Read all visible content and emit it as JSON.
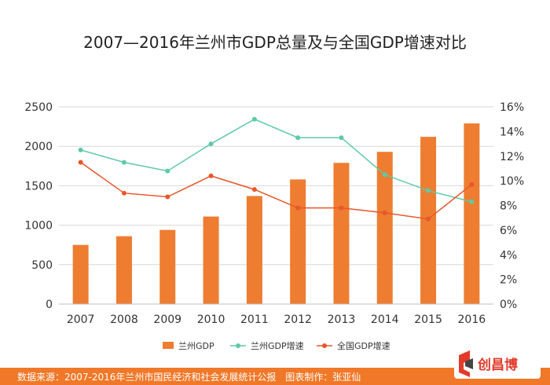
{
  "title": "2007—2016年兰州市GDP总量及与全国GDP增速对比",
  "footer": {
    "source": "数据来源：2007-2016年兰州市国民经济和社会发展统计公报",
    "author": "图表制作：张亚仙"
  },
  "logo_text": "创昌博",
  "colors": {
    "bar": "#ee7d31",
    "lanzhou_growth": "#5ec9a8",
    "national_growth": "#e8562a",
    "grid": "#d9d9d9",
    "axis_text": "#333333",
    "footer_bg": "#f07828"
  },
  "chart_data": {
    "type": "bar",
    "categories": [
      "2007",
      "2008",
      "2009",
      "2010",
      "2011",
      "2012",
      "2013",
      "2014",
      "2015",
      "2016"
    ],
    "y_left": {
      "ticks": [
        "0",
        "500",
        "1000",
        "1500",
        "2000",
        "2500"
      ],
      "ylim": [
        0,
        2500
      ]
    },
    "y_right": {
      "ticks": [
        "0%",
        "2%",
        "4%",
        "6%",
        "8%",
        "10%",
        "12%",
        "14%",
        "16%"
      ],
      "ylim": [
        0,
        16
      ]
    },
    "series": [
      {
        "name": "兰州GDP",
        "type": "bar",
        "axis": "left",
        "values": [
          750,
          860,
          940,
          1110,
          1370,
          1580,
          1790,
          1930,
          2120,
          2290
        ]
      },
      {
        "name": "兰州GDP增速",
        "type": "line",
        "axis": "right",
        "values": [
          12.5,
          11.5,
          10.8,
          13.0,
          15.0,
          13.5,
          13.5,
          10.5,
          9.2,
          8.3
        ]
      },
      {
        "name": "全国GDP增速",
        "type": "line",
        "axis": "right",
        "values": [
          11.5,
          9.0,
          8.7,
          10.4,
          9.3,
          7.8,
          7.8,
          7.4,
          6.9,
          9.7
        ]
      }
    ],
    "legend_position": "bottom",
    "grid": true
  }
}
